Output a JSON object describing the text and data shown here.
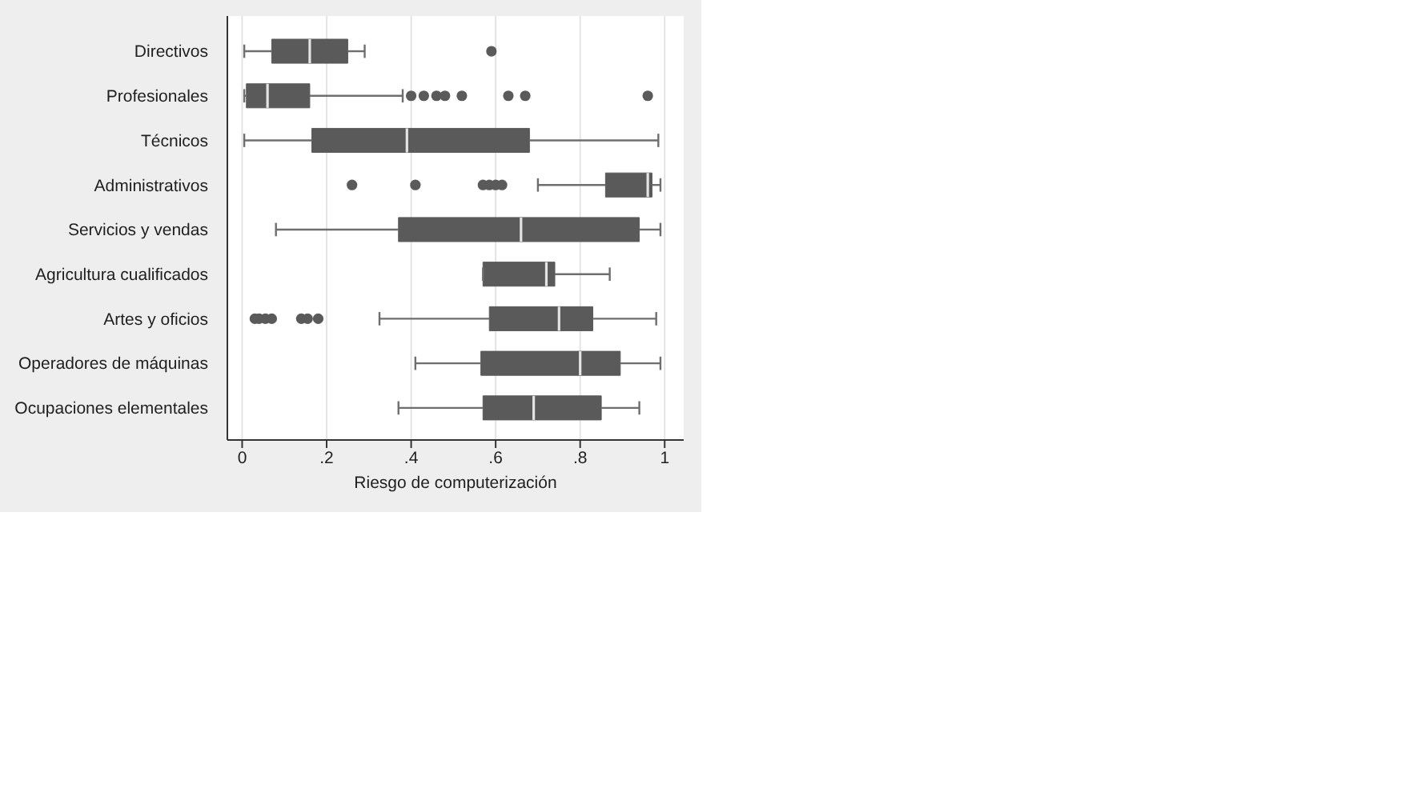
{
  "chart_data": {
    "type": "box",
    "orientation": "horizontal",
    "xlabel": "Riesgo de computerización",
    "categories": [
      "Directivos",
      "Profesionales",
      "Técnicos",
      "Administrativos",
      "Servicios y vendas",
      "Agricultura cualificados",
      "Artes y oficios",
      "Operadores de máquinas",
      "Ocupaciones elementales"
    ],
    "color": "#5a5a5a",
    "boxes": [
      {
        "low": 0.005,
        "q1": 0.07,
        "median": 0.16,
        "q3": 0.25,
        "high": 0.29,
        "outliers": [
          0.59
        ]
      },
      {
        "low": 0.005,
        "q1": 0.01,
        "median": 0.06,
        "q3": 0.16,
        "high": 0.38,
        "outliers": [
          0.4,
          0.43,
          0.46,
          0.48,
          0.52,
          0.63,
          0.67,
          0.96
        ]
      },
      {
        "low": 0.005,
        "q1": 0.165,
        "median": 0.39,
        "q3": 0.68,
        "high": 0.985
      },
      {
        "low": 0.7,
        "q1": 0.86,
        "median": 0.96,
        "q3": 0.97,
        "high": 0.99,
        "outliers": [
          0.26,
          0.41,
          0.57,
          0.585,
          0.6,
          0.615
        ]
      },
      {
        "low": 0.08,
        "q1": 0.37,
        "median": 0.66,
        "q3": 0.94,
        "high": 0.99
      },
      {
        "low": 0.57,
        "q1": 0.57,
        "median": 0.72,
        "q3": 0.74,
        "high": 0.87
      },
      {
        "low": 0.325,
        "q1": 0.585,
        "median": 0.75,
        "q3": 0.83,
        "high": 0.98,
        "outliers": [
          0.03,
          0.04,
          0.055,
          0.07,
          0.14,
          0.155,
          0.18
        ]
      },
      {
        "low": 0.41,
        "q1": 0.565,
        "median": 0.8,
        "q3": 0.895,
        "high": 0.99
      },
      {
        "low": 0.37,
        "q1": 0.57,
        "median": 0.69,
        "q3": 0.85,
        "high": 0.94
      }
    ],
    "xlim": [
      -0.035,
      1.045
    ],
    "xticks": [
      0,
      {
        "value": 0.2,
        "label": ".2"
      },
      {
        "value": 0.4,
        "label": ".4"
      },
      {
        "value": 0.6,
        "label": ".6"
      },
      {
        "value": 0.8,
        "label": ".8"
      },
      1
    ],
    "grid": "x"
  }
}
